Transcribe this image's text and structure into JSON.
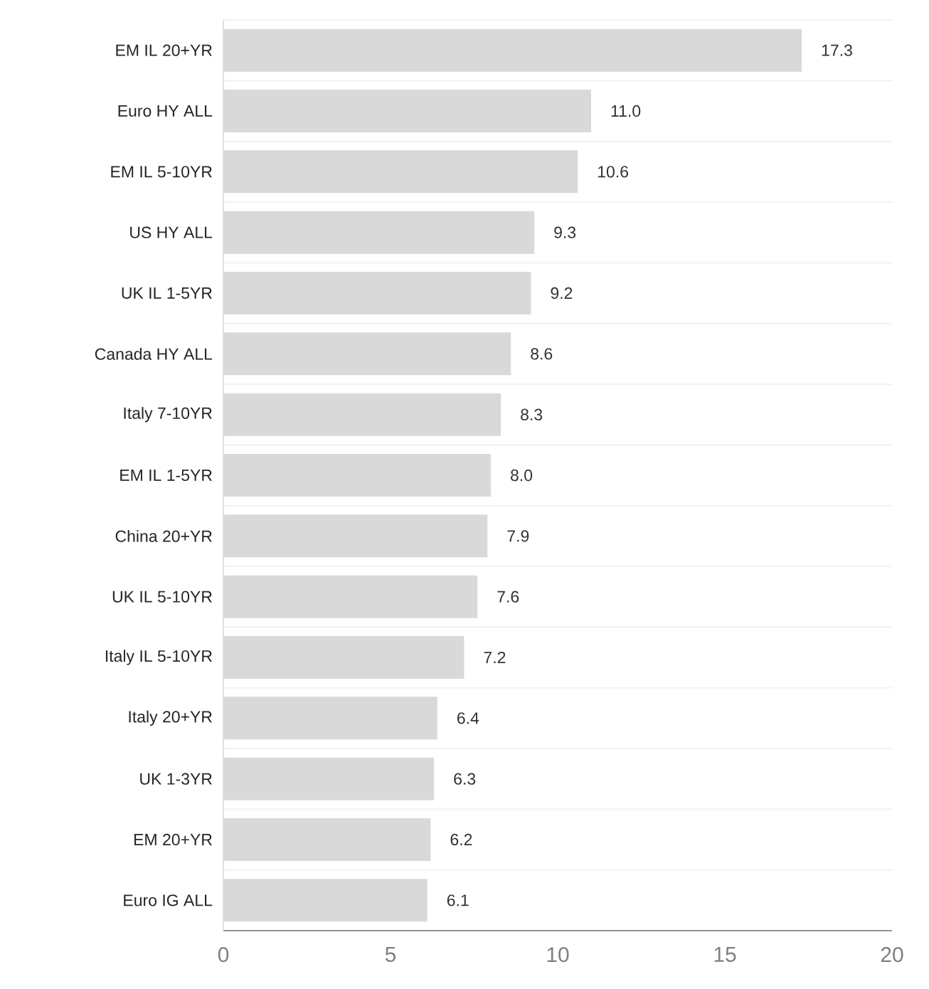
{
  "chart_data": {
    "type": "bar",
    "orientation": "horizontal",
    "categories": [
      "EM IL 20+YR",
      "Euro HY ALL",
      "EM IL 5-10YR",
      "US HY ALL",
      "UK IL 1-5YR",
      "Canada HY ALL",
      "Italy 7-10YR",
      "EM IL 1-5YR",
      "China 20+YR",
      "UK IL 5-10YR",
      "Italy IL 5-10YR",
      "Italy 20+YR",
      "UK 1-3YR",
      "EM 20+YR",
      "Euro IG ALL"
    ],
    "values": [
      17.3,
      11.0,
      10.6,
      9.3,
      9.2,
      8.6,
      8.3,
      8.0,
      7.9,
      7.6,
      7.2,
      6.4,
      6.3,
      6.2,
      6.1
    ],
    "value_labels": [
      "17.3",
      "11.0",
      "10.6",
      "9.3",
      "9.2",
      "8.6",
      "8.3",
      "8.0",
      "7.9",
      "7.6",
      "7.2",
      "6.4",
      "6.3",
      "6.2",
      "6.1"
    ],
    "color": "#d9d9d9",
    "xlim": [
      0,
      20
    ],
    "xticks": [
      0,
      5,
      10,
      15,
      20
    ],
    "grid": "y"
  }
}
